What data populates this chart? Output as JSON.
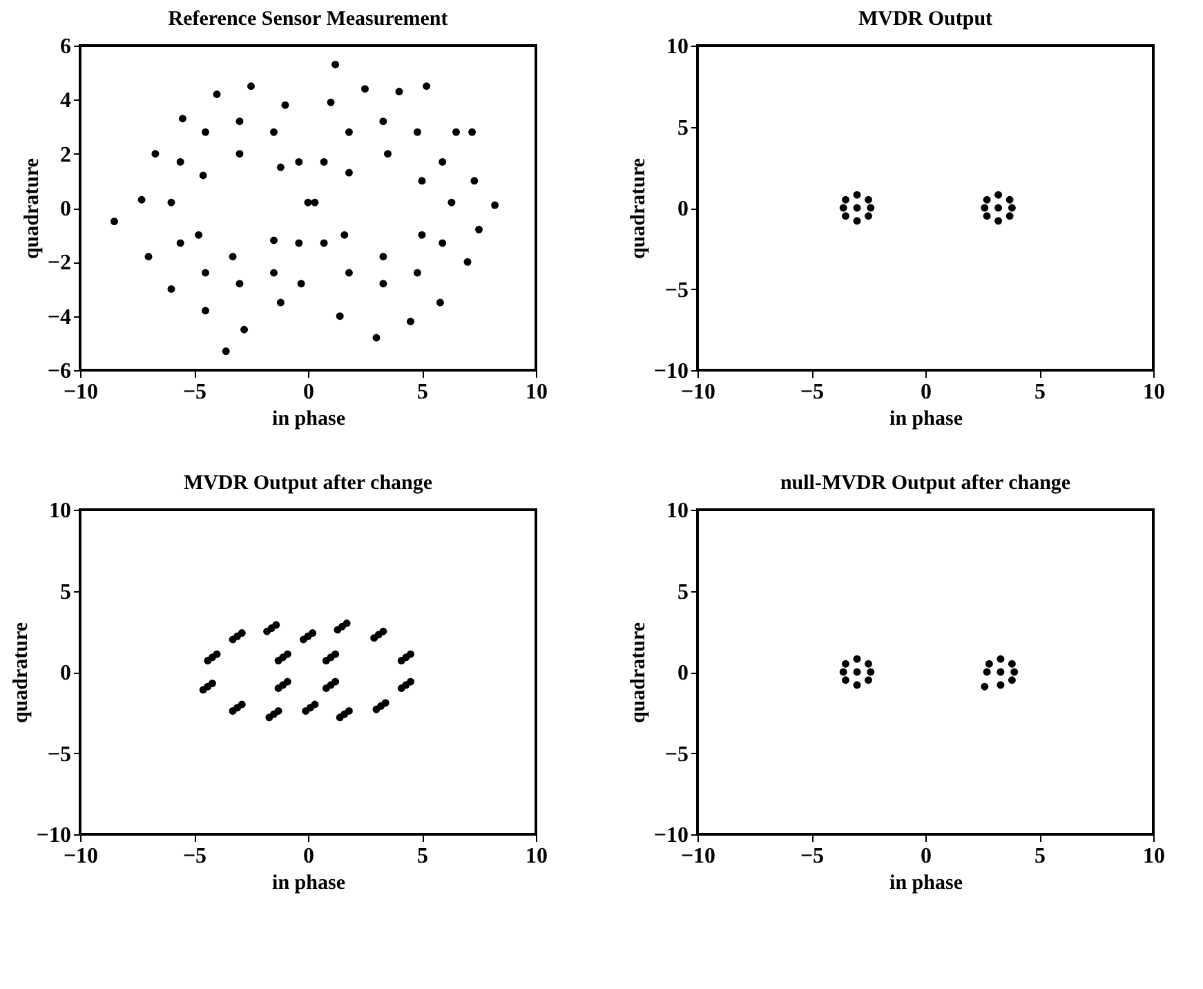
{
  "chart_data": [
    {
      "type": "scatter",
      "title": "Reference Sensor Measurement",
      "xlabel": "in phase",
      "ylabel": "quadrature",
      "xlim": [
        -10,
        10
      ],
      "ylim": [
        -6,
        6
      ],
      "xticks": [
        -10,
        -5,
        0,
        5,
        10
      ],
      "yticks": [
        -6,
        -4,
        -2,
        0,
        2,
        4,
        6
      ],
      "grid": false,
      "marker": "circle",
      "series": [
        {
          "color": "#000000",
          "x": [
            0,
            -0.4,
            -1.5,
            -3,
            -4.5,
            -5.6,
            -6,
            -5.6,
            -4.5,
            -3,
            -1.5,
            -0.4,
            -1,
            -2.5,
            -4,
            -5.5,
            -6.7,
            -7.3,
            -7,
            -6,
            -4.5,
            -2.8,
            -1.2,
            -0.3,
            -1.2,
            -3,
            -4.6,
            -4.8,
            -3.3,
            -1.5,
            0.3,
            0.7,
            1.8,
            3.3,
            4.8,
            5.9,
            6.3,
            5.9,
            4.8,
            3.3,
            1.8,
            0.7,
            1,
            2.5,
            4,
            5.2,
            6.5,
            7.3,
            7.5,
            7,
            5.8,
            4.5,
            3,
            1.4,
            1.8,
            3.5,
            5,
            5,
            3.3,
            1.6,
            -8.5,
            -3.6,
            1.2,
            8.2,
            7.2
          ],
          "values": [
            0.2,
            1.7,
            2.8,
            3.2,
            2.8,
            1.7,
            0.2,
            -1.3,
            -2.4,
            -2.8,
            -2.4,
            -1.3,
            3.8,
            4.5,
            4.2,
            3.3,
            2,
            0.3,
            -1.8,
            -3,
            -3.8,
            -4.5,
            -3.5,
            -2.8,
            1.5,
            2,
            1.2,
            -1,
            -1.8,
            -1.2,
            0.2,
            1.7,
            2.8,
            3.2,
            2.8,
            1.7,
            0.2,
            -1.3,
            -2.4,
            -2.8,
            -2.4,
            -1.3,
            3.9,
            4.4,
            4.3,
            4.5,
            2.8,
            1,
            -0.8,
            -2,
            -3.5,
            -4.2,
            -4.8,
            -4,
            1.3,
            2,
            1,
            -1,
            -1.8,
            -1,
            -0.5,
            -5.3,
            5.3,
            0.1,
            2.8
          ]
        }
      ]
    },
    {
      "type": "scatter",
      "title": "MVDR Output",
      "xlabel": "in phase",
      "ylabel": "quadrature",
      "xlim": [
        -10,
        10
      ],
      "ylim": [
        -10,
        10
      ],
      "xticks": [
        -10,
        -5,
        0,
        5,
        10
      ],
      "yticks": [
        -10,
        -5,
        0,
        5,
        10
      ],
      "grid": false,
      "marker": "circle",
      "series": [
        {
          "color": "#000000",
          "x": [
            -3,
            -3.6,
            -2.4,
            -3,
            -3,
            -3.5,
            -2.5,
            -3.5,
            -2.5,
            3.2,
            2.6,
            3.8,
            3.2,
            3.2,
            2.7,
            3.7,
            2.7,
            3.7
          ],
          "values": [
            0,
            0,
            0,
            0.8,
            -0.8,
            0.5,
            0.5,
            -0.5,
            -0.5,
            0,
            0,
            0,
            0.8,
            -0.8,
            0.5,
            0.5,
            -0.5,
            -0.5
          ]
        }
      ]
    },
    {
      "type": "scatter",
      "title": "MVDR Output after change",
      "xlabel": "in phase",
      "ylabel": "quadrature",
      "xlim": [
        -10,
        10
      ],
      "ylim": [
        -10,
        10
      ],
      "xticks": [
        -10,
        -5,
        0,
        5,
        10
      ],
      "yticks": [
        -10,
        -5,
        0,
        5,
        10
      ],
      "grid": false,
      "marker": "circle",
      "series": [
        {
          "color": "#000000",
          "x": [
            -4.2,
            -4.4,
            -4,
            -3.1,
            -3.3,
            -2.9,
            -1.6,
            -1.8,
            -1.4,
            0,
            -0.2,
            0.2,
            1.5,
            1.3,
            1.7,
            3.1,
            2.9,
            3.3,
            4.3,
            4.1,
            4.5,
            4.3,
            4.1,
            4.5,
            3.2,
            3,
            3.4,
            1.6,
            1.4,
            1.8,
            0.1,
            -0.1,
            0.3,
            -1.5,
            -1.7,
            -1.3,
            -3.1,
            -3.3,
            -2.9,
            -4.4,
            -4.6,
            -4.2,
            -1.1,
            -1.3,
            -0.9,
            1,
            0.8,
            1.2,
            -1.1,
            -1.3,
            -0.9,
            1,
            0.8,
            1.2
          ],
          "values": [
            0.9,
            0.7,
            1.1,
            2.2,
            2,
            2.4,
            2.7,
            2.5,
            2.9,
            2.2,
            2,
            2.4,
            2.8,
            2.6,
            3,
            2.3,
            2.1,
            2.5,
            0.9,
            0.7,
            1.1,
            -0.8,
            -1,
            -0.6,
            -2.1,
            -2.3,
            -1.9,
            -2.6,
            -2.8,
            -2.4,
            -2.2,
            -2.4,
            -2,
            -2.6,
            -2.8,
            -2.4,
            -2.2,
            -2.4,
            -2,
            -0.9,
            -1.1,
            -0.7,
            0.9,
            0.7,
            1.1,
            0.9,
            0.7,
            1.1,
            -0.8,
            -1,
            -0.6,
            -0.8,
            -1,
            -0.6
          ]
        }
      ]
    },
    {
      "type": "scatter",
      "title": "null-MVDR Output after change",
      "xlabel": "in phase",
      "ylabel": "quadrature",
      "xlim": [
        -10,
        10
      ],
      "ylim": [
        -10,
        10
      ],
      "xticks": [
        -10,
        -5,
        0,
        5,
        10
      ],
      "yticks": [
        -10,
        -5,
        0,
        5,
        10
      ],
      "grid": false,
      "marker": "circle",
      "series": [
        {
          "color": "#000000",
          "x": [
            -3,
            -3.6,
            -2.4,
            -3,
            -3,
            -3.5,
            -2.5,
            -3.5,
            -2.5,
            3.3,
            2.7,
            3.9,
            3.3,
            3.3,
            2.8,
            3.8,
            2.6,
            3.8
          ],
          "values": [
            0,
            0,
            0,
            0.8,
            -0.8,
            0.5,
            0.5,
            -0.5,
            -0.5,
            0,
            0,
            0,
            0.8,
            -0.8,
            0.5,
            0.5,
            -0.9,
            -0.5
          ]
        }
      ]
    }
  ]
}
